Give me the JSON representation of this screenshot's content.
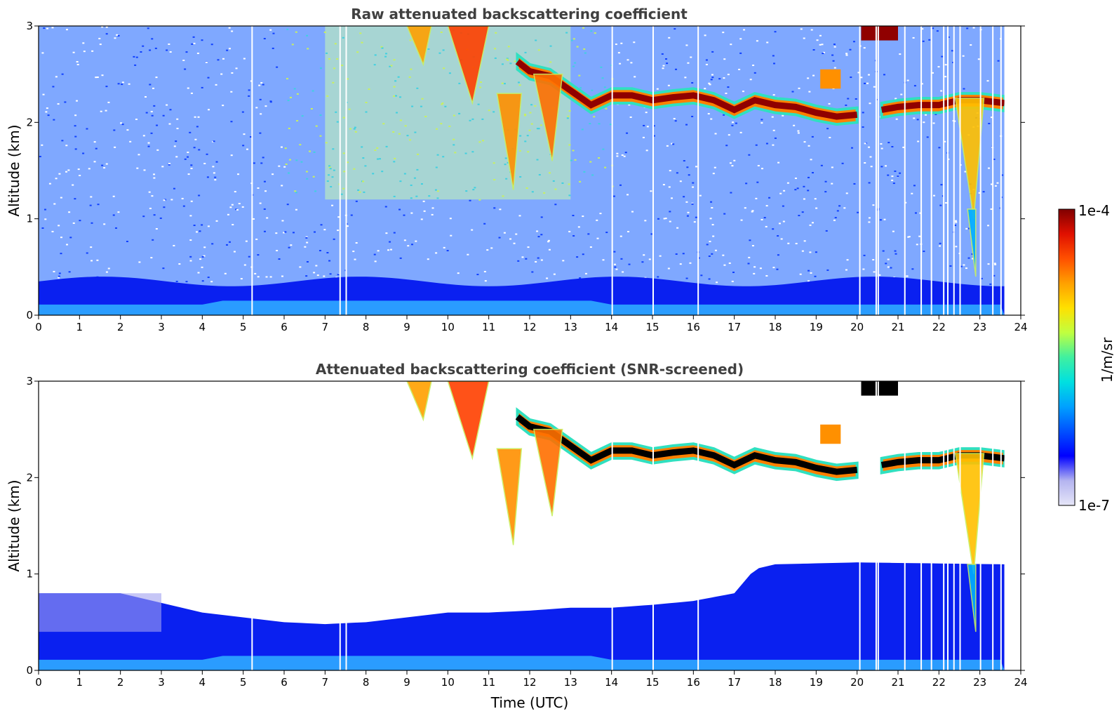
{
  "chart_data": [
    {
      "type": "heatmap",
      "title": "Raw attenuated backscattering coefficient",
      "ylabel": "Altitude (km)",
      "xlabel": "",
      "xlim": [
        0,
        24
      ],
      "ylim": [
        0,
        3
      ],
      "xticks": [
        "0",
        "1",
        "2",
        "3",
        "4",
        "5",
        "6",
        "7",
        "8",
        "9",
        "10",
        "11",
        "12",
        "13",
        "14",
        "15",
        "16",
        "17",
        "18",
        "19",
        "20",
        "21",
        "22",
        "23",
        "24"
      ],
      "yticks": [
        "0",
        "1",
        "2",
        "3"
      ],
      "screened": false,
      "cloud_layer_altitude_km": [
        {
          "t": 11.7,
          "h": 2.65
        },
        {
          "t": 12.0,
          "h": 2.55
        },
        {
          "t": 12.5,
          "h": 2.5
        },
        {
          "t": 13.0,
          "h": 2.35
        },
        {
          "t": 13.5,
          "h": 2.2
        },
        {
          "t": 14.0,
          "h": 2.3
        },
        {
          "t": 14.5,
          "h": 2.3
        },
        {
          "t": 15.0,
          "h": 2.25
        },
        {
          "t": 15.5,
          "h": 2.28
        },
        {
          "t": 16.0,
          "h": 2.3
        },
        {
          "t": 16.5,
          "h": 2.25
        },
        {
          "t": 17.0,
          "h": 2.15
        },
        {
          "t": 17.5,
          "h": 2.25
        },
        {
          "t": 18.0,
          "h": 2.2
        },
        {
          "t": 18.5,
          "h": 2.18
        },
        {
          "t": 19.0,
          "h": 2.12
        },
        {
          "t": 19.5,
          "h": 2.08
        },
        {
          "t": 20.0,
          "h": 2.1
        }
      ],
      "cloud_layer_late_km": [
        {
          "t": 20.6,
          "h": 2.15
        },
        {
          "t": 21.0,
          "h": 2.18
        },
        {
          "t": 21.5,
          "h": 2.2
        },
        {
          "t": 22.0,
          "h": 2.2
        },
        {
          "t": 22.5,
          "h": 2.25
        },
        {
          "t": 23.0,
          "h": 2.25
        },
        {
          "t": 23.6,
          "h": 2.22
        }
      ],
      "data_gaps_utc": [
        5.2,
        7.35,
        7.5,
        14.0,
        15.0,
        16.1,
        20.05,
        20.45,
        20.5,
        21.15,
        21.55,
        21.8,
        22.1,
        22.2,
        22.35,
        22.5,
        23.0,
        23.3,
        23.5
      ]
    },
    {
      "type": "heatmap",
      "title": "Attenuated backscattering coefficient (SNR-screened)",
      "ylabel": "Altitude (km)",
      "xlabel": "Time (UTC)",
      "xlim": [
        0,
        24
      ],
      "ylim": [
        0,
        3
      ],
      "xticks": [
        "0",
        "1",
        "2",
        "3",
        "4",
        "5",
        "6",
        "7",
        "8",
        "9",
        "10",
        "11",
        "12",
        "13",
        "14",
        "15",
        "16",
        "17",
        "18",
        "19",
        "20",
        "21",
        "22",
        "23",
        "24"
      ],
      "yticks": [
        "0",
        "1",
        "2",
        "3"
      ],
      "screened": true,
      "boundary_layer_top_km": [
        {
          "t": 0,
          "h": 0.8
        },
        {
          "t": 2,
          "h": 0.8
        },
        {
          "t": 3,
          "h": 0.7
        },
        {
          "t": 4,
          "h": 0.6
        },
        {
          "t": 5,
          "h": 0.55
        },
        {
          "t": 6,
          "h": 0.5
        },
        {
          "t": 7,
          "h": 0.48
        },
        {
          "t": 8,
          "h": 0.5
        },
        {
          "t": 9,
          "h": 0.55
        },
        {
          "t": 10,
          "h": 0.6
        },
        {
          "t": 11,
          "h": 0.6
        },
        {
          "t": 12,
          "h": 0.62
        },
        {
          "t": 13,
          "h": 0.65
        },
        {
          "t": 14,
          "h": 0.65
        },
        {
          "t": 15,
          "h": 0.68
        },
        {
          "t": 16,
          "h": 0.72
        },
        {
          "t": 17,
          "h": 0.8
        },
        {
          "t": 17.5,
          "h": 1.05
        },
        {
          "t": 18,
          "h": 1.1
        },
        {
          "t": 20,
          "h": 1.12
        },
        {
          "t": 23.6,
          "h": 1.1
        }
      ]
    }
  ],
  "colorbar": {
    "max_label": "1e-4",
    "min_label": "1e-7",
    "unit_label": "1/m/sr",
    "colormap": [
      "#e6e6f8",
      "#b4b4f0",
      "#0000ff",
      "#0050ff",
      "#00a0ff",
      "#00e0e0",
      "#40f0a0",
      "#c0ff40",
      "#ffe000",
      "#ffa000",
      "#ff5000",
      "#e01000",
      "#800000"
    ]
  }
}
